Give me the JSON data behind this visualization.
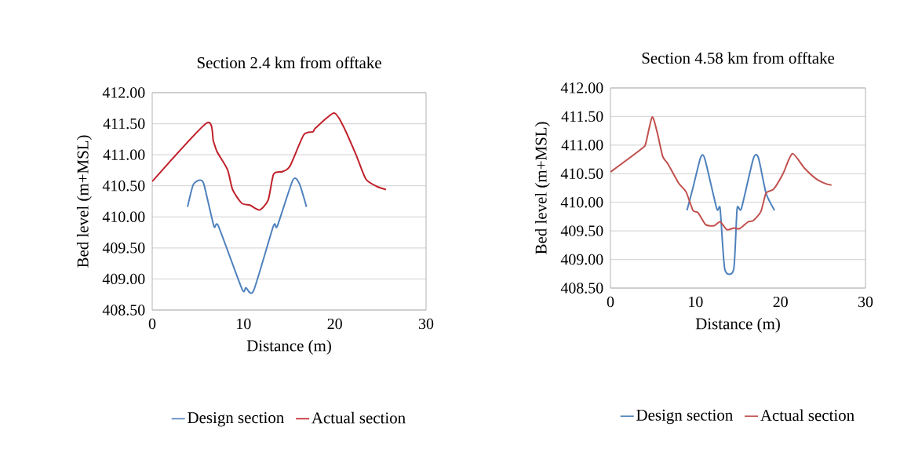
{
  "chart_data": [
    {
      "type": "line",
      "title": "Section 2.4 km from offtake",
      "xlabel": "Distance (m)",
      "ylabel": "Bed level (m+MSL)",
      "xlim": [
        0,
        30
      ],
      "xticks": [
        0,
        10,
        20,
        30
      ],
      "ylim": [
        408.5,
        412
      ],
      "yticks": [
        {
          "value": 408.5,
          "label": "408.50"
        },
        {
          "value": 409,
          "label": "409.00"
        },
        {
          "value": 409.5,
          "label": "409.50"
        },
        {
          "value": 410,
          "label": "410.00"
        },
        {
          "value": 410.5,
          "label": "410.50"
        },
        {
          "value": 411,
          "label": "411.00"
        },
        {
          "value": 411.5,
          "label": "411.50"
        },
        {
          "value": 412,
          "label": "412.00"
        }
      ],
      "grid": "y",
      "legend": "bottom",
      "series": [
        {
          "name": "Design section",
          "color": "#4f81bd",
          "x": [
            3.87,
            4.5,
            5.24,
            5.67,
            6.76,
            7.25,
            9.83,
            10.26,
            11.1,
            13.27,
            13.7,
            15.4,
            16.1,
            16.9
          ],
          "values": [
            410.16,
            410.52,
            410.59,
            410.52,
            409.85,
            409.85,
            408.84,
            408.86,
            408.81,
            409.85,
            409.85,
            410.59,
            410.54,
            410.16
          ]
        },
        {
          "name": "Actual section",
          "color": "#c0202a",
          "x": [
            0,
            5.96,
            6.7,
            7.1,
            8.25,
            8.8,
            9.8,
            10.7,
            11.75,
            12.7,
            13.3,
            14.3,
            15.1,
            16.6,
            17.6,
            17.9,
            19.9,
            20.9,
            22.3,
            23.4,
            24.6,
            25.6
          ],
          "values": [
            410.57,
            411.51,
            411.22,
            411.05,
            410.76,
            410.44,
            410.22,
            410.19,
            410.11,
            410.27,
            410.69,
            410.73,
            410.82,
            411.32,
            411.37,
            411.43,
            411.67,
            411.47,
            411.01,
            410.61,
            410.49,
            410.44
          ]
        }
      ]
    },
    {
      "type": "line",
      "title": "Section 4.58 km from offtake",
      "xlabel": "Distance (m)",
      "ylabel": "Bed level (m+MSL)",
      "xlim": [
        0,
        30
      ],
      "xticks": [
        0,
        10,
        20,
        30
      ],
      "ylim": [
        408.5,
        412
      ],
      "yticks": [
        {
          "value": 408.5,
          "label": "408.50"
        },
        {
          "value": 409,
          "label": "409.00"
        },
        {
          "value": 409.5,
          "label": "409.50"
        },
        {
          "value": 410,
          "label": "410.00"
        },
        {
          "value": 410.5,
          "label": "410.50"
        },
        {
          "value": 411,
          "label": "411.00"
        },
        {
          "value": 411.5,
          "label": "411.50"
        },
        {
          "value": 412,
          "label": "412.00"
        }
      ],
      "grid": "y",
      "legend": "bottom",
      "series": [
        {
          "name": "Design section",
          "color": "#4f81bd",
          "x": [
            9.0,
            9.7,
            10.6,
            11.1,
            12.5,
            12.9,
            13.45,
            14.5,
            14.9,
            15.4,
            16.8,
            17.4,
            18.3,
            19.3
          ],
          "values": [
            409.86,
            410.25,
            410.78,
            410.76,
            409.89,
            409.89,
            408.83,
            408.83,
            409.89,
            409.89,
            410.76,
            410.78,
            410.16,
            409.86
          ]
        },
        {
          "name": "Actual section",
          "color": "#c0504d",
          "x": [
            0,
            3.7,
            4.15,
            4.9,
            5.5,
            6.15,
            6.77,
            8.0,
            8.9,
            9.7,
            10.3,
            11.2,
            12.2,
            12.9,
            13.7,
            14.5,
            15.2,
            16.2,
            16.8,
            17.7,
            18.3,
            19.2,
            20.3,
            21.4,
            22.8,
            24.2,
            25.4,
            26.0
          ],
          "values": [
            410.53,
            410.94,
            411.03,
            411.49,
            411.22,
            410.8,
            410.67,
            410.34,
            410.18,
            409.86,
            409.82,
            409.61,
            409.59,
            409.66,
            409.52,
            409.55,
            409.54,
            409.66,
            409.68,
            409.84,
            410.16,
            410.23,
            410.5,
            410.85,
            410.6,
            410.41,
            410.32,
            410.3
          ]
        }
      ]
    }
  ]
}
